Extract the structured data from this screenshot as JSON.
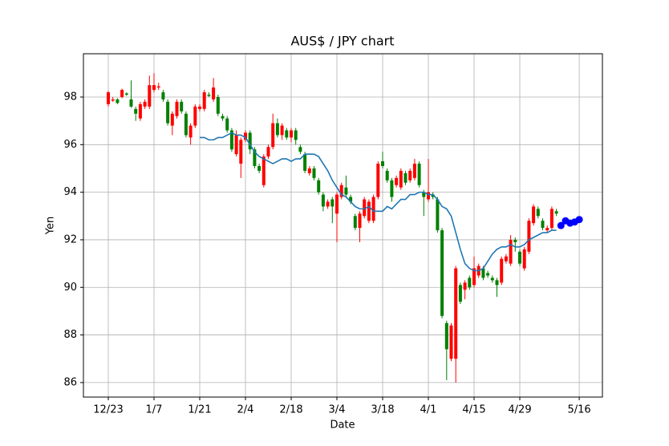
{
  "chart_data": {
    "type": "candlestick",
    "title": "AUS$ / JPY chart",
    "xlabel": "Date",
    "ylabel": "Yen",
    "xlim": [
      -5.44,
      108.07
    ],
    "ylim": [
      85.39,
      99.82
    ],
    "xticks": [
      {
        "value": 0,
        "label": "12/23"
      },
      {
        "value": 10,
        "label": "1/7"
      },
      {
        "value": 20,
        "label": "1/21"
      },
      {
        "value": 30,
        "label": "2/4"
      },
      {
        "value": 40,
        "label": "2/18"
      },
      {
        "value": 50,
        "label": "3/4"
      },
      {
        "value": 60,
        "label": "3/18"
      },
      {
        "value": 70,
        "label": "4/1"
      },
      {
        "value": 80,
        "label": "4/15"
      },
      {
        "value": 90,
        "label": "4/29"
      },
      {
        "value": 103,
        "label": "5/16"
      }
    ],
    "yticks": [
      86,
      88,
      90,
      92,
      94,
      96,
      98
    ],
    "grid": true,
    "colorup": "#ff0000",
    "colordown": "#008000",
    "candles": {
      "x": [
        0,
        1,
        2,
        3,
        4,
        5,
        6,
        7,
        8,
        9,
        10,
        11,
        12,
        13,
        14,
        15,
        16,
        17,
        18,
        19,
        20,
        21,
        22,
        23,
        24,
        25,
        26,
        27,
        28,
        29,
        30,
        31,
        32,
        33,
        34,
        35,
        36,
        37,
        38,
        39,
        40,
        41,
        42,
        43,
        44,
        45,
        46,
        47,
        48,
        49,
        50,
        51,
        52,
        53,
        54,
        55,
        56,
        57,
        58,
        59,
        60,
        61,
        62,
        63,
        64,
        65,
        66,
        67,
        68,
        69,
        70,
        71,
        72,
        73,
        74,
        75,
        76,
        77,
        78,
        79,
        80,
        81,
        82,
        83,
        84,
        85,
        86,
        87,
        88,
        89,
        90,
        91,
        92,
        93,
        94,
        95,
        96,
        97,
        98
      ],
      "open": [
        97.7,
        97.85,
        97.9,
        98.0,
        98.15,
        97.9,
        97.5,
        97.1,
        97.6,
        97.6,
        98.3,
        98.4,
        98.2,
        97.8,
        96.8,
        97.2,
        97.8,
        97.3,
        96.3,
        96.8,
        97.5,
        97.5,
        98.1,
        97.9,
        98.0,
        97.2,
        97.1,
        96.6,
        95.6,
        95.2,
        96.2,
        96.5,
        95.8,
        95.1,
        94.3,
        95.5,
        95.9,
        96.9,
        96.4,
        96.6,
        96.3,
        96.6,
        95.9,
        95.6,
        94.8,
        95.0,
        94.5,
        93.9,
        93.4,
        93.7,
        93.1,
        93.8,
        94.2,
        93.8,
        93.0,
        92.5,
        93.0,
        92.8,
        92.8,
        93.8,
        95.3,
        94.9,
        94.5,
        94.3,
        94.2,
        94.8,
        94.5,
        94.6,
        95.2,
        94.0,
        93.7,
        93.9,
        93.7,
        92.4,
        88.5,
        87.0,
        87.0,
        90.1,
        89.9,
        90.4,
        90.1,
        90.5,
        90.8,
        90.6,
        90.4,
        90.3,
        90.2,
        91.1,
        91.0,
        92.0,
        91.5,
        90.8,
        91.5,
        92.7,
        93.3,
        92.8,
        92.4,
        92.5,
        93.2
      ],
      "high": [
        98.25,
        98.0,
        97.95,
        98.35,
        98.2,
        98.7,
        97.6,
        97.8,
        97.9,
        98.9,
        99.0,
        98.6,
        98.3,
        97.9,
        97.4,
        97.9,
        97.9,
        97.4,
        96.9,
        97.7,
        97.7,
        98.3,
        98.2,
        98.8,
        98.1,
        97.3,
        97.2,
        96.7,
        96.6,
        96.3,
        96.6,
        96.6,
        95.9,
        95.2,
        95.6,
        96.0,
        97.3,
        97.1,
        96.9,
        96.7,
        96.7,
        96.7,
        96.0,
        95.7,
        95.1,
        95.1,
        94.6,
        94.0,
        93.7,
        93.8,
        94.0,
        94.4,
        94.7,
        93.9,
        93.1,
        93.2,
        93.8,
        93.7,
        93.9,
        95.3,
        95.7,
        95.0,
        94.6,
        94.7,
        95.0,
        94.9,
        95.0,
        95.4,
        95.3,
        94.1,
        95.4,
        94.0,
        93.8,
        92.5,
        88.6,
        88.5,
        90.9,
        90.2,
        90.3,
        90.5,
        91.3,
        91.0,
        90.9,
        90.7,
        90.5,
        90.4,
        91.3,
        91.4,
        92.2,
        92.1,
        91.6,
        91.7,
        92.9,
        93.5,
        93.4,
        92.9,
        92.6,
        93.4,
        93.3
      ],
      "low": [
        97.6,
        97.8,
        97.7,
        97.95,
        98.05,
        97.55,
        97.0,
        97.0,
        97.5,
        97.5,
        98.2,
        98.3,
        97.8,
        96.8,
        96.4,
        97.1,
        97.3,
        96.3,
        96.0,
        96.7,
        97.4,
        97.4,
        98.0,
        97.8,
        97.2,
        97.0,
        96.5,
        95.7,
        95.5,
        94.6,
        96.1,
        95.6,
        95.0,
        94.8,
        94.2,
        95.4,
        95.8,
        96.3,
        96.2,
        96.2,
        96.1,
        96.0,
        95.6,
        94.8,
        94.7,
        94.5,
        93.9,
        93.2,
        93.3,
        92.7,
        91.9,
        93.7,
        93.8,
        93.5,
        92.4,
        91.9,
        92.9,
        92.7,
        92.7,
        93.7,
        95.0,
        94.4,
        93.6,
        94.2,
        94.1,
        94.3,
        94.4,
        94.5,
        94.2,
        93.0,
        93.6,
        93.7,
        92.3,
        88.7,
        86.1,
        86.9,
        86.0,
        89.3,
        89.5,
        89.9,
        90.0,
        90.4,
        90.3,
        90.4,
        90.2,
        89.6,
        90.1,
        91.0,
        90.9,
        91.5,
        90.9,
        90.7,
        91.4,
        92.6,
        92.9,
        92.4,
        92.3,
        92.4,
        93.0
      ],
      "close": [
        98.2,
        97.9,
        97.75,
        98.3,
        98.1,
        97.6,
        97.3,
        97.7,
        97.8,
        98.5,
        98.5,
        98.45,
        97.9,
        96.9,
        97.3,
        97.8,
        97.4,
        96.4,
        96.8,
        97.6,
        97.6,
        98.2,
        98.05,
        98.4,
        97.3,
        97.1,
        96.6,
        95.8,
        96.4,
        96.2,
        96.5,
        95.8,
        95.1,
        94.9,
        95.5,
        95.9,
        96.9,
        96.4,
        96.8,
        96.3,
        96.6,
        96.2,
        95.7,
        94.9,
        95.0,
        94.6,
        94.0,
        93.4,
        93.6,
        93.4,
        93.9,
        94.3,
        93.9,
        93.6,
        92.5,
        93.1,
        93.7,
        93.6,
        93.8,
        95.2,
        95.1,
        94.5,
        93.8,
        94.6,
        94.9,
        94.4,
        94.9,
        95.2,
        94.3,
        93.8,
        94.0,
        93.8,
        92.4,
        88.8,
        87.4,
        88.4,
        90.8,
        89.4,
        90.2,
        90.0,
        90.8,
        90.9,
        90.4,
        90.5,
        90.3,
        90.1,
        91.2,
        91.3,
        92.0,
        91.9,
        91.0,
        91.6,
        92.8,
        93.4,
        93.0,
        92.5,
        92.5,
        93.3,
        93.1
      ]
    },
    "ma": {
      "color": "#1f77b4",
      "x": [
        20,
        21,
        22,
        23,
        24,
        25,
        26,
        27,
        28,
        29,
        30,
        31,
        32,
        33,
        34,
        35,
        36,
        37,
        38,
        39,
        40,
        41,
        42,
        43,
        44,
        45,
        46,
        47,
        48,
        49,
        50,
        51,
        52,
        53,
        54,
        55,
        56,
        57,
        58,
        59,
        60,
        61,
        62,
        63,
        64,
        65,
        66,
        67,
        68,
        69,
        70,
        71,
        72,
        73,
        74,
        75,
        76,
        77,
        78,
        79,
        80,
        81,
        82,
        83,
        84,
        85,
        86,
        87,
        88,
        89,
        90,
        91,
        92,
        93,
        94,
        95,
        96,
        97,
        98
      ],
      "values": [
        96.3,
        96.3,
        96.2,
        96.2,
        96.3,
        96.3,
        96.4,
        96.5,
        96.4,
        96.4,
        96.3,
        96.0,
        95.7,
        95.5,
        95.4,
        95.3,
        95.2,
        95.3,
        95.4,
        95.4,
        95.3,
        95.4,
        95.4,
        95.6,
        95.6,
        95.6,
        95.5,
        95.2,
        94.9,
        94.5,
        94.2,
        93.9,
        93.8,
        93.6,
        93.4,
        93.3,
        93.3,
        93.4,
        93.2,
        93.2,
        93.2,
        93.4,
        93.3,
        93.5,
        93.7,
        93.7,
        93.9,
        93.9,
        94.0,
        94.0,
        93.9,
        93.9,
        93.7,
        93.4,
        93.3,
        93.0,
        92.3,
        91.6,
        91.0,
        90.8,
        90.7,
        90.7,
        90.8,
        91.1,
        91.4,
        91.6,
        91.7,
        91.7,
        91.8,
        91.7,
        91.7,
        91.8,
        92.0,
        92.1,
        92.2,
        92.3,
        92.3,
        92.4,
        92.4
      ]
    },
    "forecast": {
      "color": "#0000ff",
      "x": [
        99,
        100,
        101,
        102,
        103
      ],
      "values": [
        92.6,
        92.8,
        92.7,
        92.75,
        92.85
      ]
    }
  }
}
